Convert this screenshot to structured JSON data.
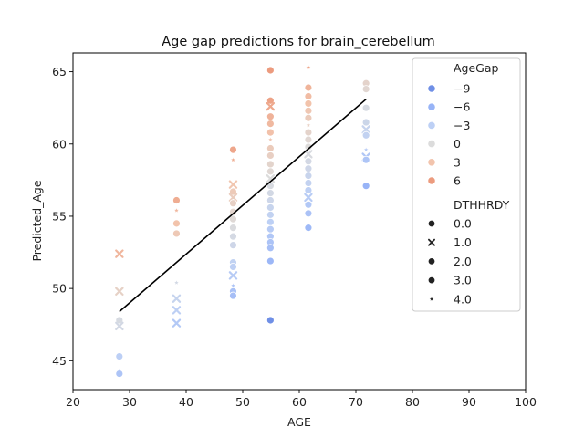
{
  "chart_data": {
    "type": "scatter",
    "title": "Age gap predictions for brain_cerebellum",
    "xlabel": "AGE",
    "ylabel": "Predicted_Age",
    "xlim": [
      20,
      100
    ],
    "ylim": [
      43,
      66.3
    ],
    "xticks": [
      20,
      30,
      40,
      50,
      60,
      70,
      80,
      90,
      100
    ],
    "yticks": [
      45,
      50,
      55,
      60,
      65
    ],
    "grid": false,
    "legend_placement": "top-right",
    "hue_title": "AgeGap",
    "hue_entries": [
      {
        "label": "−9",
        "value": -9,
        "color": "#6f8fe6"
      },
      {
        "label": "−6",
        "value": -6,
        "color": "#98b4f7"
      },
      {
        "label": "−3",
        "value": -3,
        "color": "#bdd0f5"
      },
      {
        "label": "0",
        "value": 0,
        "color": "#dcdcdc"
      },
      {
        "label": "3",
        "value": 3,
        "color": "#f2c4ad"
      },
      {
        "label": "6",
        "value": 6,
        "color": "#ec9b7e"
      }
    ],
    "style_title": "DTHHRDY",
    "style_entries": [
      {
        "label": "0.0",
        "marker": "circle"
      },
      {
        "label": "1.0",
        "marker": "x"
      },
      {
        "label": "2.0",
        "marker": "circle"
      },
      {
        "label": "3.0",
        "marker": "circle"
      },
      {
        "label": "4.0",
        "marker": "star"
      }
    ],
    "regression_line": {
      "x": [
        28.2,
        71.8
      ],
      "y": [
        48.4,
        63.1
      ],
      "color": "#000000"
    },
    "points": [
      {
        "x": 28.2,
        "y": 52.4,
        "gap": 4.0,
        "m": "x"
      },
      {
        "x": 28.2,
        "y": 49.8,
        "gap": 1.4,
        "m": "x"
      },
      {
        "x": 28.2,
        "y": 47.8,
        "gap": -0.6,
        "m": "circle"
      },
      {
        "x": 28.2,
        "y": 47.4,
        "gap": -1.0,
        "m": "x"
      },
      {
        "x": 28.2,
        "y": 45.3,
        "gap": -3.1,
        "m": "circle"
      },
      {
        "x": 28.2,
        "y": 44.3,
        "gap": -4.1,
        "m": "star"
      },
      {
        "x": 28.2,
        "y": 44.1,
        "gap": -4.3,
        "m": "circle"
      },
      {
        "x": 38.3,
        "y": 56.1,
        "gap": 4.7,
        "m": "circle"
      },
      {
        "x": 38.3,
        "y": 55.4,
        "gap": 4.0,
        "m": "star"
      },
      {
        "x": 38.3,
        "y": 54.5,
        "gap": 3.1,
        "m": "circle"
      },
      {
        "x": 38.3,
        "y": 53.8,
        "gap": 2.4,
        "m": "circle"
      },
      {
        "x": 38.3,
        "y": 50.4,
        "gap": -1.0,
        "m": "star"
      },
      {
        "x": 38.3,
        "y": 49.3,
        "gap": -2.1,
        "m": "x"
      },
      {
        "x": 38.3,
        "y": 48.5,
        "gap": -2.9,
        "m": "x"
      },
      {
        "x": 38.3,
        "y": 47.6,
        "gap": -3.8,
        "m": "x"
      },
      {
        "x": 48.3,
        "y": 59.6,
        "gap": 5.2,
        "m": "circle"
      },
      {
        "x": 48.3,
        "y": 58.9,
        "gap": 4.5,
        "m": "star"
      },
      {
        "x": 48.3,
        "y": 57.2,
        "gap": 2.8,
        "m": "x"
      },
      {
        "x": 48.3,
        "y": 56.7,
        "gap": 2.3,
        "m": "circle"
      },
      {
        "x": 48.3,
        "y": 56.3,
        "gap": 1.9,
        "m": "x"
      },
      {
        "x": 48.3,
        "y": 55.9,
        "gap": 1.5,
        "m": "circle"
      },
      {
        "x": 48.3,
        "y": 55.3,
        "gap": 0.9,
        "m": "circle"
      },
      {
        "x": 48.3,
        "y": 54.8,
        "gap": 0.4,
        "m": "circle"
      },
      {
        "x": 48.3,
        "y": 54.2,
        "gap": -0.2,
        "m": "circle"
      },
      {
        "x": 48.3,
        "y": 53.6,
        "gap": -0.8,
        "m": "circle"
      },
      {
        "x": 48.3,
        "y": 53.0,
        "gap": -1.4,
        "m": "circle"
      },
      {
        "x": 48.3,
        "y": 51.8,
        "gap": -2.6,
        "m": "circle"
      },
      {
        "x": 48.3,
        "y": 51.5,
        "gap": -2.9,
        "m": "circle"
      },
      {
        "x": 48.3,
        "y": 50.9,
        "gap": -3.5,
        "m": "x"
      },
      {
        "x": 48.3,
        "y": 50.2,
        "gap": -4.2,
        "m": "star"
      },
      {
        "x": 48.3,
        "y": 49.8,
        "gap": -4.6,
        "m": "circle"
      },
      {
        "x": 48.3,
        "y": 49.5,
        "gap": -4.9,
        "m": "circle"
      },
      {
        "x": 54.9,
        "y": 65.1,
        "gap": 7.5,
        "m": "circle"
      },
      {
        "x": 54.9,
        "y": 63.0,
        "gap": 5.4,
        "m": "circle"
      },
      {
        "x": 54.9,
        "y": 62.6,
        "gap": 5.0,
        "m": "x"
      },
      {
        "x": 54.9,
        "y": 61.9,
        "gap": 4.3,
        "m": "circle"
      },
      {
        "x": 54.9,
        "y": 61.4,
        "gap": 3.8,
        "m": "circle"
      },
      {
        "x": 54.9,
        "y": 60.8,
        "gap": 3.2,
        "m": "circle"
      },
      {
        "x": 54.9,
        "y": 60.3,
        "gap": 2.7,
        "m": "star"
      },
      {
        "x": 54.9,
        "y": 59.7,
        "gap": 2.1,
        "m": "circle"
      },
      {
        "x": 54.9,
        "y": 59.2,
        "gap": 1.6,
        "m": "circle"
      },
      {
        "x": 54.9,
        "y": 58.6,
        "gap": 1.0,
        "m": "circle"
      },
      {
        "x": 54.9,
        "y": 58.1,
        "gap": 0.5,
        "m": "circle"
      },
      {
        "x": 54.9,
        "y": 57.6,
        "gap": 0.0,
        "m": "x"
      },
      {
        "x": 54.9,
        "y": 57.1,
        "gap": -0.5,
        "m": "circle"
      },
      {
        "x": 54.9,
        "y": 56.6,
        "gap": -1.0,
        "m": "circle"
      },
      {
        "x": 54.9,
        "y": 56.1,
        "gap": -1.5,
        "m": "circle"
      },
      {
        "x": 54.9,
        "y": 55.6,
        "gap": -2.0,
        "m": "circle"
      },
      {
        "x": 54.9,
        "y": 55.1,
        "gap": -2.5,
        "m": "circle"
      },
      {
        "x": 54.9,
        "y": 54.6,
        "gap": -3.0,
        "m": "circle"
      },
      {
        "x": 54.9,
        "y": 54.1,
        "gap": -3.5,
        "m": "circle"
      },
      {
        "x": 54.9,
        "y": 53.6,
        "gap": -4.0,
        "m": "circle"
      },
      {
        "x": 54.9,
        "y": 53.2,
        "gap": -4.4,
        "m": "circle"
      },
      {
        "x": 54.9,
        "y": 52.8,
        "gap": -4.8,
        "m": "circle"
      },
      {
        "x": 54.9,
        "y": 51.9,
        "gap": -5.7,
        "m": "circle"
      },
      {
        "x": 54.9,
        "y": 47.8,
        "gap": -9.8,
        "m": "circle"
      },
      {
        "x": 61.6,
        "y": 65.3,
        "gap": 5.6,
        "m": "star"
      },
      {
        "x": 61.6,
        "y": 63.9,
        "gap": 4.2,
        "m": "circle"
      },
      {
        "x": 61.6,
        "y": 63.3,
        "gap": 3.6,
        "m": "circle"
      },
      {
        "x": 61.6,
        "y": 62.8,
        "gap": 3.1,
        "m": "circle"
      },
      {
        "x": 61.6,
        "y": 62.3,
        "gap": 2.6,
        "m": "circle"
      },
      {
        "x": 61.6,
        "y": 61.8,
        "gap": 2.1,
        "m": "circle"
      },
      {
        "x": 61.6,
        "y": 61.3,
        "gap": 1.6,
        "m": "star"
      },
      {
        "x": 61.6,
        "y": 60.8,
        "gap": 1.1,
        "m": "circle"
      },
      {
        "x": 61.6,
        "y": 60.3,
        "gap": 0.6,
        "m": "circle"
      },
      {
        "x": 61.6,
        "y": 59.8,
        "gap": 0.1,
        "m": "circle"
      },
      {
        "x": 61.6,
        "y": 59.3,
        "gap": -0.4,
        "m": "x"
      },
      {
        "x": 61.6,
        "y": 58.8,
        "gap": -0.9,
        "m": "circle"
      },
      {
        "x": 61.6,
        "y": 58.3,
        "gap": -1.4,
        "m": "circle"
      },
      {
        "x": 61.6,
        "y": 57.8,
        "gap": -1.9,
        "m": "circle"
      },
      {
        "x": 61.6,
        "y": 57.3,
        "gap": -2.4,
        "m": "circle"
      },
      {
        "x": 61.6,
        "y": 56.8,
        "gap": -2.9,
        "m": "circle"
      },
      {
        "x": 61.6,
        "y": 56.3,
        "gap": -3.4,
        "m": "x"
      },
      {
        "x": 61.6,
        "y": 55.8,
        "gap": -3.9,
        "m": "circle"
      },
      {
        "x": 61.6,
        "y": 55.2,
        "gap": -4.5,
        "m": "circle"
      },
      {
        "x": 61.6,
        "y": 54.2,
        "gap": -5.5,
        "m": "circle"
      },
      {
        "x": 71.8,
        "y": 64.2,
        "gap": 1.1,
        "m": "circle"
      },
      {
        "x": 71.8,
        "y": 63.8,
        "gap": 0.7,
        "m": "circle"
      },
      {
        "x": 71.8,
        "y": 62.5,
        "gap": -0.6,
        "m": "circle"
      },
      {
        "x": 71.8,
        "y": 61.5,
        "gap": -1.6,
        "m": "circle"
      },
      {
        "x": 71.8,
        "y": 61.0,
        "gap": -2.1,
        "m": "x"
      },
      {
        "x": 71.8,
        "y": 60.6,
        "gap": -2.5,
        "m": "circle"
      },
      {
        "x": 71.8,
        "y": 59.6,
        "gap": -3.5,
        "m": "star"
      },
      {
        "x": 71.8,
        "y": 59.1,
        "gap": -4.0,
        "m": "x"
      },
      {
        "x": 71.8,
        "y": 58.9,
        "gap": -4.2,
        "m": "circle"
      },
      {
        "x": 71.8,
        "y": 57.1,
        "gap": -6.0,
        "m": "circle"
      }
    ]
  }
}
